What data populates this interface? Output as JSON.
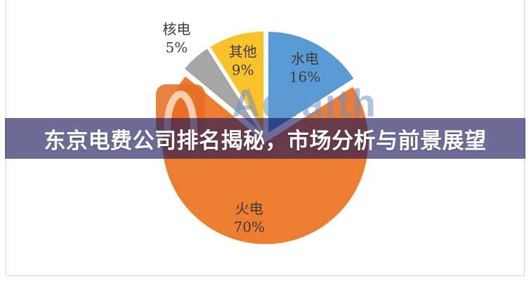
{
  "banner": {
    "title": "东京电费公司排名揭秘，市场分析与前景展望"
  },
  "watermark": {
    "text": "Adfaith",
    "logo_icon": "adfaith-arch-logo"
  },
  "chart_data": {
    "type": "pie",
    "title": "",
    "start_angle": "12-oclock",
    "direction": "clockwise",
    "total": 100,
    "legend": "none",
    "slices": [
      {
        "name": "水电",
        "value": 16,
        "pct_label": "16%",
        "color": "#5b9bd5",
        "label_position": "inside"
      },
      {
        "name": "火电",
        "value": 70,
        "pct_label": "70%",
        "color": "#ed7d31",
        "label_position": "inside"
      },
      {
        "name": "核电",
        "value": 5,
        "pct_label": "5%",
        "color": "#a6a6a6",
        "label_position": "outside"
      },
      {
        "name": "其他",
        "value": 9,
        "pct_label": "9%",
        "color": "#fcc22c",
        "label_position": "inside"
      }
    ],
    "label_text_color": "#3c3c3c"
  },
  "colors": {
    "banner_overlay": "rgba(20,18,88,0.62)",
    "watermark_blue": "rgba(106,145,196,0.55)",
    "watermark_orange": "rgba(232,112,36,0.88)",
    "frame_border": "#d6d6d6",
    "background": "#ffffff"
  }
}
